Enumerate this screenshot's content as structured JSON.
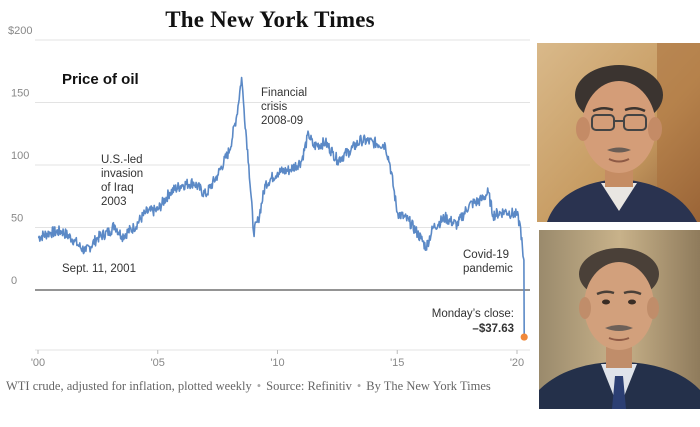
{
  "masthead": "The New York Times",
  "caption": {
    "description": "WTI crude, adjusted for inflation, plotted weekly",
    "source": "Source: Refinitiv",
    "credit": "By The New York Times"
  },
  "colors": {
    "line": "#5b89c6",
    "close_marker": "#f0883a",
    "grid": "#e3e3e3",
    "zero_line": "#555555",
    "text": "#333333"
  },
  "photos": [
    {
      "name": "man-with-glasses-portrait",
      "background": "#cfa56d"
    },
    {
      "name": "man-in-suit-portrait",
      "background": "#b49a72"
    }
  ],
  "chart_data": {
    "type": "line",
    "title": "Price of oil",
    "ylim": [
      -40,
      200
    ],
    "yticks": [
      0,
      50,
      100,
      150,
      200
    ],
    "ytick_labels": [
      "0",
      "50",
      "100",
      "150",
      "$200"
    ],
    "xlim": [
      2000,
      2020.4
    ],
    "xticks": [
      2000,
      2005,
      2010,
      2015,
      2020
    ],
    "xtick_labels": [
      "'00",
      "'05",
      "'10",
      "'15",
      "'20"
    ],
    "grid": true,
    "series": [
      {
        "x": [
          2000,
          2000.5,
          2001,
          2001.5,
          2001.72,
          2002,
          2002.5,
          2003,
          2003.2,
          2003.5,
          2004,
          2004.5,
          2005,
          2005.5,
          2006,
          2006.5,
          2007,
          2007.5,
          2008,
          2008.3,
          2008.5,
          2008.6,
          2008.8,
          2009,
          2009.2,
          2009.5,
          2010,
          2010.5,
          2011,
          2011.3,
          2011.5,
          2012,
          2012.3,
          2012.5,
          2013,
          2013.5,
          2014,
          2014.5,
          2014.7,
          2015,
          2015.5,
          2016,
          2016.2,
          2016.5,
          2017,
          2017.5,
          2018,
          2018.5,
          2018.8,
          2019,
          2019.5,
          2020,
          2020.15,
          2020.25,
          2020.29,
          2020.3
        ],
        "values": [
          42,
          46,
          47,
          40,
          35,
          31,
          42,
          47,
          52,
          43,
          50,
          62,
          64,
          78,
          84,
          86,
          76,
          92,
          112,
          140,
          170,
          145,
          100,
          46,
          56,
          85,
          94,
          96,
          103,
          125,
          115,
          118,
          110,
          104,
          111,
          120,
          118,
          116,
          100,
          62,
          55,
          41,
          34,
          50,
          58,
          52,
          68,
          72,
          78,
          60,
          63,
          60,
          50,
          27,
          24,
          -37.63
        ]
      }
    ],
    "annotations": [
      {
        "text_lines": [
          "U.S.-led",
          "invasion",
          "of Iraq",
          "2003"
        ],
        "x": 2003.2
      },
      {
        "text_lines": [
          "Financial",
          "crisis",
          "2008-09"
        ],
        "x": 2008.5
      },
      {
        "text_lines": [
          "Sept. 11, 2001"
        ],
        "x": 2001.72
      },
      {
        "text_lines": [
          "Covid-19",
          "pandemic"
        ],
        "x": 2020.2
      },
      {
        "text_lines": [
          "Monday’s close:",
          "–$37.63"
        ],
        "x": 2020.3
      }
    ],
    "last_close": {
      "x": 2020.3,
      "value": -37.63
    }
  }
}
